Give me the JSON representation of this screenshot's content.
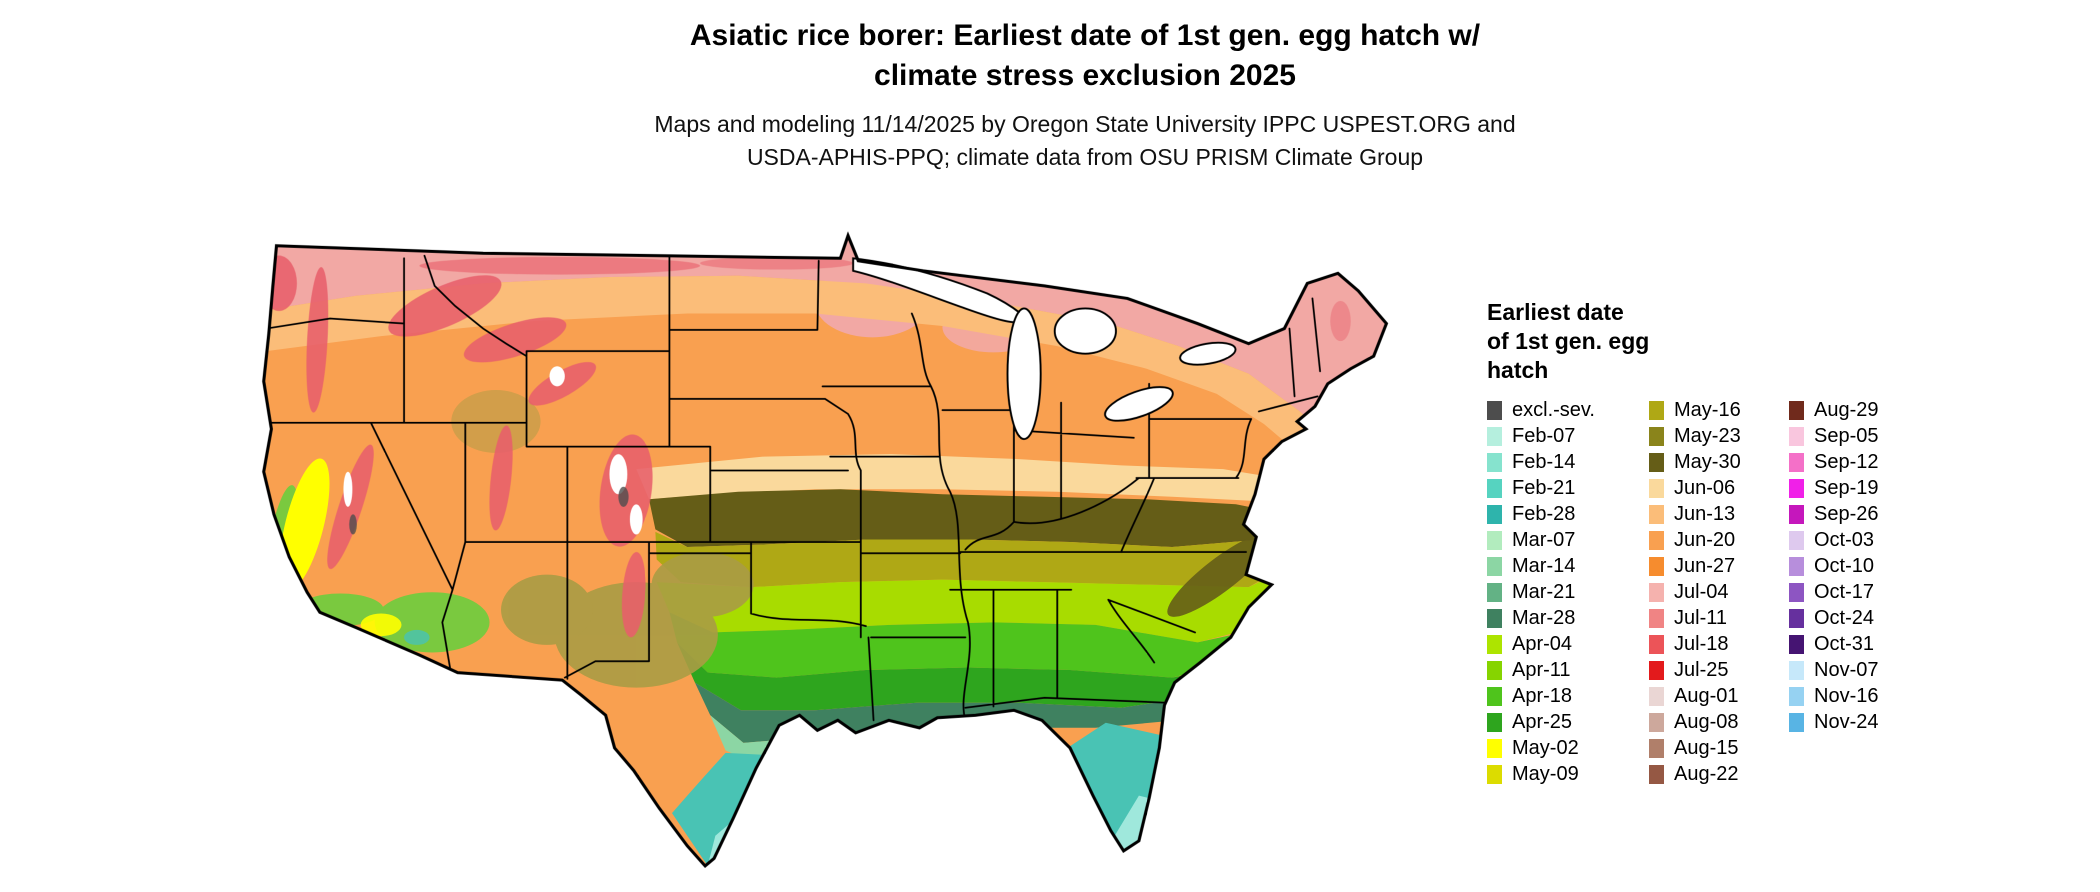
{
  "header": {
    "title_line1": "Asiatic rice borer: Earliest date of 1st gen. egg hatch w/",
    "title_line2": "climate stress exclusion 2025",
    "subtitle_line1": "Maps and modeling 11/14/2025 by Oregon State University IPPC USPEST.ORG and",
    "subtitle_line2": "USDA-APHIS-PPQ; climate data from OSU PRISM Climate Group"
  },
  "legend": {
    "title_lines": [
      "Earliest date",
      "of 1st gen. egg",
      "hatch"
    ],
    "columns": [
      [
        {
          "label": "excl.-sev.",
          "color": "#4D4D4D"
        },
        {
          "label": "Feb-07",
          "color": "#B5EFDE"
        },
        {
          "label": "Feb-14",
          "color": "#86E3CE"
        },
        {
          "label": "Feb-21",
          "color": "#56D3C0"
        },
        {
          "label": "Feb-28",
          "color": "#2EB4AC"
        },
        {
          "label": "Mar-07",
          "color": "#B2ECBE"
        },
        {
          "label": "Mar-14",
          "color": "#8CD6A4"
        },
        {
          "label": "Mar-21",
          "color": "#63B285"
        },
        {
          "label": "Mar-28",
          "color": "#3F8160"
        },
        {
          "label": "Apr-04",
          "color": "#ADE400"
        },
        {
          "label": "Apr-11",
          "color": "#86D400"
        },
        {
          "label": "Apr-18",
          "color": "#4FC41C"
        },
        {
          "label": "Apr-25",
          "color": "#2EA51E"
        },
        {
          "label": "May-02",
          "color": "#FFFF00"
        },
        {
          "label": "May-09",
          "color": "#DCDC00"
        }
      ],
      [
        {
          "label": "May-16",
          "color": "#AFA815"
        },
        {
          "label": "May-23",
          "color": "#8A841B"
        },
        {
          "label": "May-30",
          "color": "#655D17"
        },
        {
          "label": "Jun-06",
          "color": "#FAD99C"
        },
        {
          "label": "Jun-13",
          "color": "#FBBD79"
        },
        {
          "label": "Jun-20",
          "color": "#F9A050"
        },
        {
          "label": "Jun-27",
          "color": "#F68C2E"
        },
        {
          "label": "Jul-04",
          "color": "#F5B2AE"
        },
        {
          "label": "Jul-11",
          "color": "#F08484"
        },
        {
          "label": "Jul-18",
          "color": "#EC5458"
        },
        {
          "label": "Jul-25",
          "color": "#E31A1C"
        },
        {
          "label": "Aug-01",
          "color": "#EAD6D4"
        },
        {
          "label": "Aug-08",
          "color": "#CDA89C"
        },
        {
          "label": "Aug-15",
          "color": "#B07F6A"
        },
        {
          "label": "Aug-22",
          "color": "#955844"
        }
      ],
      [
        {
          "label": "Aug-29",
          "color": "#702A1C"
        },
        {
          "label": "Sep-05",
          "color": "#F9C6DE"
        },
        {
          "label": "Sep-12",
          "color": "#F470C8"
        },
        {
          "label": "Sep-19",
          "color": "#F020E8"
        },
        {
          "label": "Sep-26",
          "color": "#C517BC"
        },
        {
          "label": "Oct-03",
          "color": "#DEC9EE"
        },
        {
          "label": "Oct-10",
          "color": "#B78EDC"
        },
        {
          "label": "Oct-17",
          "color": "#8D55C2"
        },
        {
          "label": "Oct-24",
          "color": "#66309E"
        },
        {
          "label": "Oct-31",
          "color": "#451472"
        },
        {
          "label": "Nov-07",
          "color": "#C6E8FA"
        },
        {
          "label": "Nov-16",
          "color": "#96D2F2"
        },
        {
          "label": "Nov-24",
          "color": "#58B4E4"
        }
      ]
    ]
  },
  "map": {
    "description": "Continental US map colored by earliest date of first generation egg hatch",
    "colors": {
      "background": "#FFFFFF",
      "outline": "#000000",
      "state_border": "#000000",
      "lake": "#FFFFFF",
      "jun20_base": "#F9A050",
      "jul04_pink": "#F2A8A4",
      "jun13_light": "#FBBD79",
      "jun06_tan": "#FAD99C",
      "may30_darkolive": "#655D17",
      "may16_khaki": "#AFA815",
      "apr04_yellowgreen": "#A8DC00",
      "apr18_green": "#4FC41C",
      "apr25_deepgreen": "#2EA51E",
      "mar28_seagreen": "#3F8160",
      "mar14_lightgreen": "#8CD6A4",
      "feb_teal": "#49C3B4",
      "feb_cyan": "#9FE8DC",
      "west_khaki": "#AA9C44",
      "mtn_red": "#E85F6B",
      "valley_yellow": "#FFFF00",
      "west_green": "#7AC93F",
      "peak_white": "#FFFFFF",
      "excl_gray": "#4D4D4D"
    }
  }
}
